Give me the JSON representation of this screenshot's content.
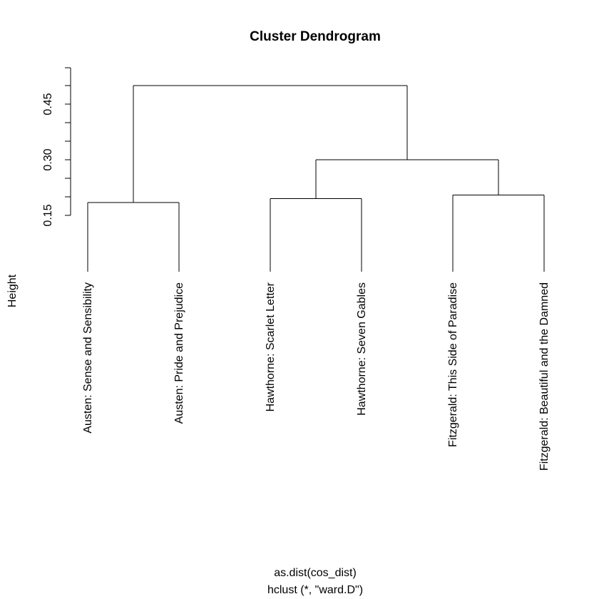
{
  "chart_data": {
    "type": "dendrogram",
    "title": "Cluster Dendrogram",
    "xlabel": "as.dist(cos_dist)",
    "sublabel": "hclust (*, \"ward.D\")",
    "ylabel": "Height",
    "yticks": [
      0.15,
      0.3,
      0.45
    ],
    "ytick_labels": [
      "0.15",
      "0.30",
      "0.45"
    ],
    "yminor_ticks": [
      0.15,
      0.2,
      0.25,
      0.3,
      0.35,
      0.4,
      0.45,
      0.5
    ],
    "ylim": [
      0.15,
      0.5
    ],
    "leaves": [
      "Austen: Sense and Sensibility",
      "Austen: Pride and Prejudice",
      "Hawthorne: Scarlet Letter",
      "Hawthorne: Seven Gables",
      "Fitzgerald: This Side of Paradise",
      "Fitzgerald: Beautiful and the Damned"
    ],
    "leaf_height": 0.0,
    "merges": [
      {
        "id": "a",
        "left": 0,
        "right": 1,
        "height": 0.185
      },
      {
        "id": "b",
        "left": 2,
        "right": 3,
        "height": 0.195
      },
      {
        "id": "c",
        "left": 4,
        "right": 5,
        "height": 0.205
      },
      {
        "id": "d",
        "left": "b",
        "right": "c",
        "height": 0.3
      },
      {
        "id": "e",
        "left": "a",
        "right": "d",
        "height": 0.5
      }
    ]
  }
}
